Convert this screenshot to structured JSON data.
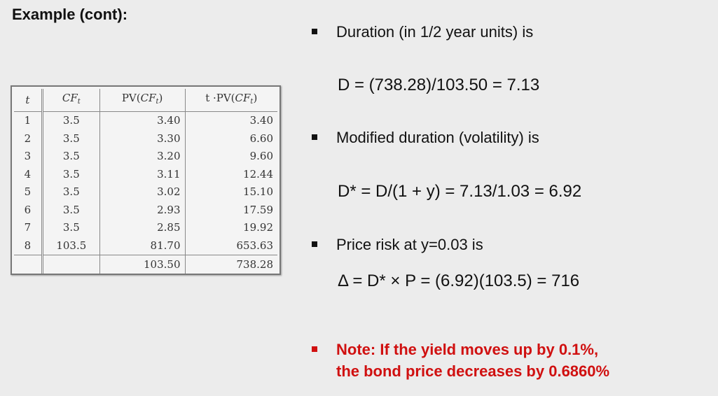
{
  "title": "Example (cont):",
  "table": {
    "headers": [
      "t",
      "CF",
      "t",
      "PV(",
      "CF",
      "t",
      ")",
      "t ·PV(",
      "CF",
      "t",
      ")"
    ],
    "rows": [
      [
        "1",
        "3.5",
        "3.40",
        "3.40"
      ],
      [
        "2",
        "3.5",
        "3.30",
        "6.60"
      ],
      [
        "3",
        "3.5",
        "3.20",
        "9.60"
      ],
      [
        "4",
        "3.5",
        "3.11",
        "12.44"
      ],
      [
        "5",
        "3.5",
        "3.02",
        "15.10"
      ],
      [
        "6",
        "3.5",
        "2.93",
        "17.59"
      ],
      [
        "7",
        "3.5",
        "2.85",
        "19.92"
      ],
      [
        "8",
        "103.5",
        "81.70",
        "653.63"
      ]
    ],
    "totals": [
      "",
      "",
      "103.50",
      "738.28"
    ]
  },
  "bullets": {
    "duration": "Duration (in 1/2 year units) is",
    "modified": "Modified duration (volatility) is",
    "price_risk": "Price risk at y=0.03 is",
    "note_line1": "Note: If the yield moves up by 0.1%,",
    "note_line2": "the bond price decreases by 0.6860%"
  },
  "formulas": {
    "duration": "D = (738.28)/103.50 = 7.13",
    "modified": "D* = D/(1 + y) = 7.13/1.03 = 6.92",
    "price_risk": "Δ = D* × P = (6.92)(103.5) = 716"
  },
  "colors": {
    "note": "#d01010",
    "background": "#ececec"
  }
}
